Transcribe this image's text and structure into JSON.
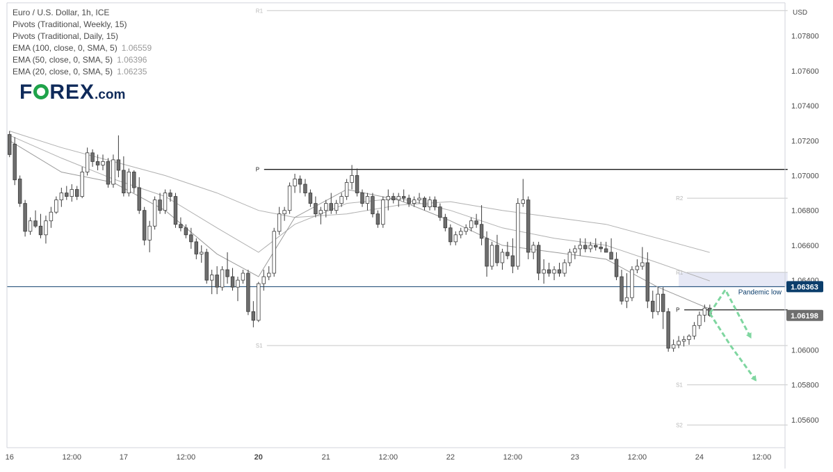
{
  "legend": {
    "symbol": "Euro / U.S. Dollar, 1h, ICE",
    "pivots_weekly": "Pivots (Traditional, Weekly, 15)",
    "pivots_daily": "Pivots (Traditional, Daily, 15)",
    "ema100": {
      "label": "EMA (100, close, 0, SMA, 5)",
      "value": "1.06559"
    },
    "ema50": {
      "label": "EMA (50, close, 0, SMA, 5)",
      "value": "1.06396"
    },
    "ema20": {
      "label": "EMA (20, close, 0, SMA, 5)",
      "value": "1.06235"
    }
  },
  "logo": {
    "pre": "F",
    "post": "REX",
    "suffix": ".com"
  },
  "colors": {
    "candle_up": "#ffffff",
    "candle_down": "#6e6e6e",
    "wick": "#3a3a3a",
    "ema": "#b0b0b0",
    "pandemic_line": "#0b3d6b",
    "last_price_bg": "#6e6e6e",
    "arrow": "#7fd6a0",
    "zone": "#e6e8f5",
    "logo_green": "#1fa34a",
    "logo_navy": "#0f2a5a"
  },
  "chart_data": {
    "type": "candlestick",
    "y_axis_label": "USD",
    "y_ticks": [
      "1.07800",
      "1.07600",
      "1.07400",
      "1.07200",
      "1.07000",
      "1.06800",
      "1.06600",
      "1.06400",
      "1.06200",
      "1.06000",
      "1.05800",
      "1.05600"
    ],
    "ylim": [
      1.0544,
      1.0799
    ],
    "x_ticks": [
      "16",
      "12:00",
      "17",
      "12:00",
      "20",
      "21",
      "12:00",
      "22",
      "12:00",
      "23",
      "12:00",
      "24",
      "12:00"
    ],
    "x_tick_bars": [
      0,
      12,
      22,
      34,
      48,
      61,
      73,
      85,
      97,
      109,
      121,
      133,
      145
    ],
    "n_slots": 150,
    "price_labels": [
      {
        "text": "1.06363",
        "value": 1.06363,
        "style": "pandemic"
      },
      {
        "text": "1.06198",
        "value": 1.06198,
        "style": "last"
      }
    ],
    "annotations": {
      "pandemic_low": "Pandemic low"
    },
    "pandemic_low": 1.06363,
    "pivot_levels": [
      {
        "label": "R1",
        "value": 1.07945,
        "from_bar": 48,
        "to_bar": 150,
        "tone": "faint"
      },
      {
        "label": "P",
        "value": 1.07035,
        "from_bar": 48,
        "to_bar": 150,
        "tone": "strong"
      },
      {
        "label": "S1",
        "value": 1.06025,
        "from_bar": 48,
        "to_bar": 150,
        "tone": "faint"
      },
      {
        "label": "R2",
        "value": 1.0687,
        "from_bar": 129,
        "to_bar": 150,
        "tone": "faint"
      },
      {
        "label": "R1",
        "value": 1.06445,
        "from_bar": 129,
        "to_bar": 150,
        "tone": "faint"
      },
      {
        "label": "P",
        "value": 1.0623,
        "from_bar": 129,
        "to_bar": 150,
        "tone": "strong"
      },
      {
        "label": "S1",
        "value": 1.058,
        "from_bar": 129,
        "to_bar": 150,
        "tone": "faint"
      },
      {
        "label": "S2",
        "value": 1.0557,
        "from_bar": 129,
        "to_bar": 150,
        "tone": "faint"
      }
    ],
    "zone": {
      "from_bar": 129,
      "to_bar": 150,
      "low": 1.0636,
      "high": 1.06445
    },
    "arrows": [
      {
        "points": [
          [
            135,
            1.0621
          ],
          [
            138,
            1.06345
          ],
          [
            143,
            1.06065
          ]
        ]
      },
      {
        "points": [
          [
            135,
            1.0621
          ],
          [
            139,
            1.06025
          ],
          [
            144,
            1.0582
          ]
        ]
      }
    ],
    "candles": [
      [
        1.07235,
        1.07255,
        1.07105,
        1.0712
      ],
      [
        1.0718,
        1.0722,
        1.06945,
        1.06975
      ],
      [
        1.0698,
        1.07,
        1.0682,
        1.0684
      ],
      [
        1.0684,
        1.0686,
        1.0665,
        1.0668
      ],
      [
        1.0668,
        1.0676,
        1.0666,
        1.0674
      ],
      [
        1.0674,
        1.068,
        1.067,
        1.0671
      ],
      [
        1.0671,
        1.0678,
        1.0664,
        1.0666
      ],
      [
        1.0666,
        1.0677,
        1.0661,
        1.0674
      ],
      [
        1.0674,
        1.0682,
        1.067,
        1.0679
      ],
      [
        1.0679,
        1.0688,
        1.0678,
        1.0686
      ],
      [
        1.0686,
        1.0693,
        1.0682,
        1.069
      ],
      [
        1.069,
        1.0694,
        1.0686,
        1.0688
      ],
      [
        1.0688,
        1.0695,
        1.0685,
        1.0692
      ],
      [
        1.0692,
        1.0694,
        1.0686,
        1.0688
      ],
      [
        1.0688,
        1.0705,
        1.0687,
        1.0702
      ],
      [
        1.0702,
        1.0716,
        1.07,
        1.0713
      ],
      [
        1.0713,
        1.0715,
        1.0705,
        1.0708
      ],
      [
        1.0708,
        1.0712,
        1.0703,
        1.0706
      ],
      [
        1.0706,
        1.0712,
        1.0703,
        1.0708
      ],
      [
        1.0708,
        1.071,
        1.0693,
        1.0695
      ],
      [
        1.0695,
        1.0712,
        1.0693,
        1.0709
      ],
      [
        1.0709,
        1.0723,
        1.0699,
        1.0703
      ],
      [
        1.0703,
        1.0711,
        1.0688,
        1.069
      ],
      [
        1.069,
        1.0704,
        1.0688,
        1.0702
      ],
      [
        1.0702,
        1.0703,
        1.069,
        1.0693
      ],
      [
        1.0693,
        1.0699,
        1.0678,
        1.068
      ],
      [
        1.068,
        1.0682,
        1.066,
        1.0663
      ],
      [
        1.0663,
        1.0674,
        1.0656,
        1.0671
      ],
      [
        1.0671,
        1.0688,
        1.0669,
        1.0686
      ],
      [
        1.0686,
        1.069,
        1.0678,
        1.068
      ],
      [
        1.068,
        1.0692,
        1.0678,
        1.069
      ],
      [
        1.069,
        1.0692,
        1.0685,
        1.0688
      ],
      [
        1.0688,
        1.069,
        1.067,
        1.0672
      ],
      [
        1.0672,
        1.0676,
        1.0668,
        1.067
      ],
      [
        1.067,
        1.0672,
        1.0664,
        1.0666
      ],
      [
        1.0666,
        1.067,
        1.0658,
        1.0662
      ],
      [
        1.0662,
        1.0664,
        1.0652,
        1.0655
      ],
      [
        1.0655,
        1.066,
        1.065,
        1.0656
      ],
      [
        1.0656,
        1.0658,
        1.0638,
        1.064
      ],
      [
        1.064,
        1.0646,
        1.0632,
        1.0643
      ],
      [
        1.0643,
        1.0648,
        1.0632,
        1.0636
      ],
      [
        1.0636,
        1.0648,
        1.0634,
        1.0646
      ],
      [
        1.0646,
        1.0656,
        1.0638,
        1.0642
      ],
      [
        1.0642,
        1.0647,
        1.0634,
        1.0636
      ],
      [
        1.0636,
        1.0642,
        1.0628,
        1.064
      ],
      [
        1.064,
        1.0646,
        1.0638,
        1.0644
      ],
      [
        1.0644,
        1.0646,
        1.062,
        1.0622
      ],
      [
        1.0622,
        1.0628,
        1.0613,
        1.0617
      ],
      [
        1.0617,
        1.0639,
        1.0616,
        1.0638
      ],
      [
        1.0638,
        1.0646,
        1.0634,
        1.0642
      ],
      [
        1.0642,
        1.0648,
        1.064,
        1.0644
      ],
      [
        1.0644,
        1.067,
        1.0642,
        1.0668
      ],
      [
        1.0668,
        1.0682,
        1.0666,
        1.0678
      ],
      [
        1.0678,
        1.0682,
        1.0674,
        1.068
      ],
      [
        1.068,
        1.0696,
        1.0678,
        1.0694
      ],
      [
        1.0694,
        1.0701,
        1.069,
        1.0698
      ],
      [
        1.0698,
        1.07,
        1.069,
        1.0695
      ],
      [
        1.0695,
        1.0698,
        1.0688,
        1.069
      ],
      [
        1.069,
        1.0692,
        1.0682,
        1.0684
      ],
      [
        1.0684,
        1.0688,
        1.0676,
        1.0678
      ],
      [
        1.0678,
        1.0682,
        1.0672,
        1.068
      ],
      [
        1.068,
        1.0686,
        1.0676,
        1.0684
      ],
      [
        1.0684,
        1.069,
        1.0678,
        1.068
      ],
      [
        1.068,
        1.0686,
        1.0678,
        1.0684
      ],
      [
        1.0684,
        1.069,
        1.0682,
        1.0688
      ],
      [
        1.0688,
        1.0698,
        1.0686,
        1.0696
      ],
      [
        1.0696,
        1.0706,
        1.0692,
        1.07
      ],
      [
        1.07,
        1.0704,
        1.0688,
        1.069
      ],
      [
        1.069,
        1.0692,
        1.0682,
        1.0684
      ],
      [
        1.0684,
        1.069,
        1.068,
        1.0688
      ],
      [
        1.0688,
        1.069,
        1.0676,
        1.0678
      ],
      [
        1.0678,
        1.068,
        1.067,
        1.0672
      ],
      [
        1.0672,
        1.0688,
        1.067,
        1.0686
      ],
      [
        1.0686,
        1.0692,
        1.068,
        1.0688
      ],
      [
        1.0688,
        1.069,
        1.0684,
        1.0686
      ],
      [
        1.0686,
        1.069,
        1.0682,
        1.0688
      ],
      [
        1.0688,
        1.0692,
        1.0685,
        1.0687
      ],
      [
        1.0687,
        1.0689,
        1.0682,
        1.0684
      ],
      [
        1.0684,
        1.0688,
        1.0682,
        1.0686
      ],
      [
        1.0686,
        1.069,
        1.0684,
        1.0687
      ],
      [
        1.0687,
        1.0688,
        1.068,
        1.0682
      ],
      [
        1.0682,
        1.0688,
        1.068,
        1.0686
      ],
      [
        1.0686,
        1.0688,
        1.068,
        1.0682
      ],
      [
        1.0682,
        1.0684,
        1.0674,
        1.0676
      ],
      [
        1.0676,
        1.0678,
        1.0668,
        1.067
      ],
      [
        1.067,
        1.0672,
        1.066,
        1.0662
      ],
      [
        1.0662,
        1.0668,
        1.066,
        1.0666
      ],
      [
        1.0666,
        1.067,
        1.0664,
        1.0668
      ],
      [
        1.0668,
        1.0672,
        1.0666,
        1.067
      ],
      [
        1.067,
        1.0676,
        1.0668,
        1.0674
      ],
      [
        1.0674,
        1.0678,
        1.067,
        1.0672
      ],
      [
        1.0672,
        1.0683,
        1.066,
        1.0664
      ],
      [
        1.0664,
        1.0668,
        1.0642,
        1.0648
      ],
      [
        1.0648,
        1.0662,
        1.0646,
        1.066
      ],
      [
        1.066,
        1.0666,
        1.0648,
        1.065
      ],
      [
        1.065,
        1.0658,
        1.0646,
        1.0656
      ],
      [
        1.0656,
        1.0662,
        1.0652,
        1.0654
      ],
      [
        1.0654,
        1.0664,
        1.0644,
        1.0648
      ],
      [
        1.0648,
        1.0687,
        1.0646,
        1.0684
      ],
      [
        1.0684,
        1.0698,
        1.0682,
        1.0686
      ],
      [
        1.0686,
        1.0688,
        1.0652,
        1.0656
      ],
      [
        1.0656,
        1.0662,
        1.0652,
        1.066
      ],
      [
        1.066,
        1.0662,
        1.064,
        1.0644
      ],
      [
        1.0644,
        1.0652,
        1.0638,
        1.0646
      ],
      [
        1.0646,
        1.065,
        1.0642,
        1.0644
      ],
      [
        1.0644,
        1.0648,
        1.064,
        1.0646
      ],
      [
        1.0646,
        1.065,
        1.0642,
        1.0644
      ],
      [
        1.0644,
        1.0652,
        1.0642,
        1.065
      ],
      [
        1.065,
        1.0658,
        1.0648,
        1.0656
      ],
      [
        1.0656,
        1.066,
        1.0652,
        1.0658
      ],
      [
        1.0658,
        1.0664,
        1.0654,
        1.066
      ],
      [
        1.066,
        1.0664,
        1.0656,
        1.0658
      ],
      [
        1.0658,
        1.0662,
        1.0656,
        1.066
      ],
      [
        1.066,
        1.0664,
        1.0657,
        1.0659
      ],
      [
        1.0659,
        1.0662,
        1.0656,
        1.0658
      ],
      [
        1.0658,
        1.0662,
        1.0656,
        1.0656
      ],
      [
        1.0656,
        1.0664,
        1.0652,
        1.0652
      ],
      [
        1.0652,
        1.0656,
        1.064,
        1.0642
      ],
      [
        1.0642,
        1.0646,
        1.0626,
        1.0628
      ],
      [
        1.0628,
        1.0644,
        1.0624,
        1.063
      ],
      [
        1.063,
        1.0648,
        1.0628,
        1.0646
      ],
      [
        1.0646,
        1.0652,
        1.0644,
        1.0648
      ],
      [
        1.0648,
        1.0659,
        1.0646,
        1.065
      ],
      [
        1.065,
        1.0656,
        1.0624,
        1.0628
      ],
      [
        1.0628,
        1.0634,
        1.0618,
        1.0622
      ],
      [
        1.0622,
        1.0636,
        1.062,
        1.0632
      ],
      [
        1.0632,
        1.0636,
        1.0612,
        1.0622
      ],
      [
        1.0622,
        1.0624,
        1.0599,
        1.0601
      ],
      [
        1.0601,
        1.0606,
        1.0599,
        1.0603
      ],
      [
        1.0603,
        1.0608,
        1.0601,
        1.0605
      ],
      [
        1.0605,
        1.0608,
        1.0602,
        1.0606
      ],
      [
        1.0606,
        1.0609,
        1.0603,
        1.0608
      ],
      [
        1.0608,
        1.0616,
        1.0606,
        1.0614
      ],
      [
        1.0614,
        1.0622,
        1.0612,
        1.062
      ],
      [
        1.062,
        1.0626,
        1.0616,
        1.0624
      ],
      [
        1.0624,
        1.0626,
        1.0619,
        1.06198
      ]
    ],
    "ema": [
      {
        "name": "EMA 100",
        "values": [
          [
            0,
            1.07255
          ],
          [
            10,
            1.0716
          ],
          [
            20,
            1.0708
          ],
          [
            30,
            1.07
          ],
          [
            40,
            1.069
          ],
          [
            48,
            1.068
          ],
          [
            55,
            1.0676
          ],
          [
            65,
            1.0678
          ],
          [
            75,
            1.0683
          ],
          [
            85,
            1.0685
          ],
          [
            95,
            1.068
          ],
          [
            105,
            1.0676
          ],
          [
            115,
            1.0672
          ],
          [
            125,
            1.0664
          ],
          [
            135,
            1.06559
          ]
        ]
      },
      {
        "name": "EMA 50",
        "values": [
          [
            0,
            1.0723
          ],
          [
            10,
            1.071
          ],
          [
            20,
            1.0698
          ],
          [
            30,
            1.0688
          ],
          [
            40,
            1.067
          ],
          [
            48,
            1.0656
          ],
          [
            55,
            1.0672
          ],
          [
            65,
            1.0684
          ],
          [
            75,
            1.0687
          ],
          [
            85,
            1.068
          ],
          [
            95,
            1.067
          ],
          [
            105,
            1.0664
          ],
          [
            115,
            1.066
          ],
          [
            125,
            1.065
          ],
          [
            135,
            1.06396
          ]
        ]
      },
      {
        "name": "EMA 20",
        "values": [
          [
            0,
            1.072
          ],
          [
            10,
            1.0702
          ],
          [
            20,
            1.0696
          ],
          [
            30,
            1.068
          ],
          [
            40,
            1.0655
          ],
          [
            48,
            1.0642
          ],
          [
            55,
            1.0676
          ],
          [
            65,
            1.0692
          ],
          [
            75,
            1.0686
          ],
          [
            85,
            1.0674
          ],
          [
            95,
            1.066
          ],
          [
            105,
            1.0656
          ],
          [
            115,
            1.0652
          ],
          [
            125,
            1.0636
          ],
          [
            135,
            1.06235
          ]
        ]
      }
    ]
  }
}
